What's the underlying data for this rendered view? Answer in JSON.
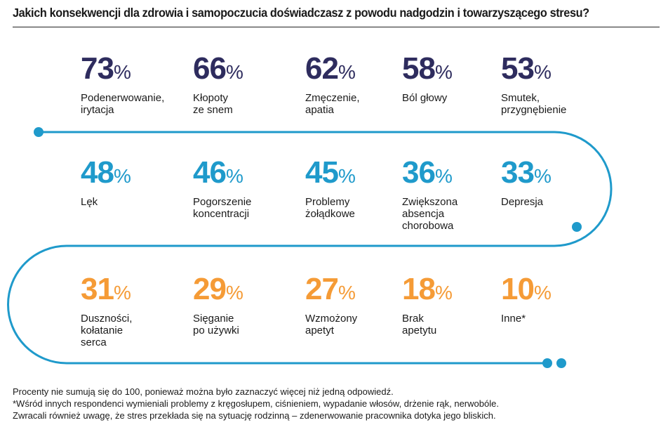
{
  "title": "Jakich konsekwencji dla zdrowia i samopoczucia doświadczasz z powodu nadgodzin i towarzyszącego stresu?",
  "colors": {
    "row1": "#2e2c5e",
    "row2": "#1f9acb",
    "row3": "#f59b36",
    "line": "#1f9acb"
  },
  "percent_sign": "%",
  "items": [
    {
      "value": "73",
      "label": "Podenerwowanie,\nirytacja"
    },
    {
      "value": "66",
      "label": "Kłopoty\nze snem"
    },
    {
      "value": "62",
      "label": "Zmęczenie,\napatia"
    },
    {
      "value": "58",
      "label": "Ból głowy"
    },
    {
      "value": "53",
      "label": "Smutek,\nprzygnębienie"
    },
    {
      "value": "48",
      "label": "Lęk"
    },
    {
      "value": "46",
      "label": "Pogorszenie\nkoncentracji"
    },
    {
      "value": "45",
      "label": "Problemy\nżołądkowe"
    },
    {
      "value": "36",
      "label": "Zwiększona\nabsencja\nchorobowa"
    },
    {
      "value": "33",
      "label": "Depresja"
    },
    {
      "value": "31",
      "label": "Duszności,\nkołatanie\nserca"
    },
    {
      "value": "29",
      "label": "Sięganie\npo używki"
    },
    {
      "value": "27",
      "label": "Wzmożony\napetyt"
    },
    {
      "value": "18",
      "label": "Brak\napetytu"
    },
    {
      "value": "10",
      "label": "Inne*"
    }
  ],
  "footnotes": [
    "Procenty nie sumują się do 100, ponieważ można było zaznaczyć więcej niż jedną odpowiedź.",
    "*Wśród innych respondenci wymieniali problemy z kręgosłupem, ciśnieniem, wypadanie włosów, drżenie rąk, nerwobóle.",
    "Zwracali również uwagę, że stres przekłada się na sytuację rodzinną – zdenerwowanie pracownika dotyka jego bliskich."
  ]
}
